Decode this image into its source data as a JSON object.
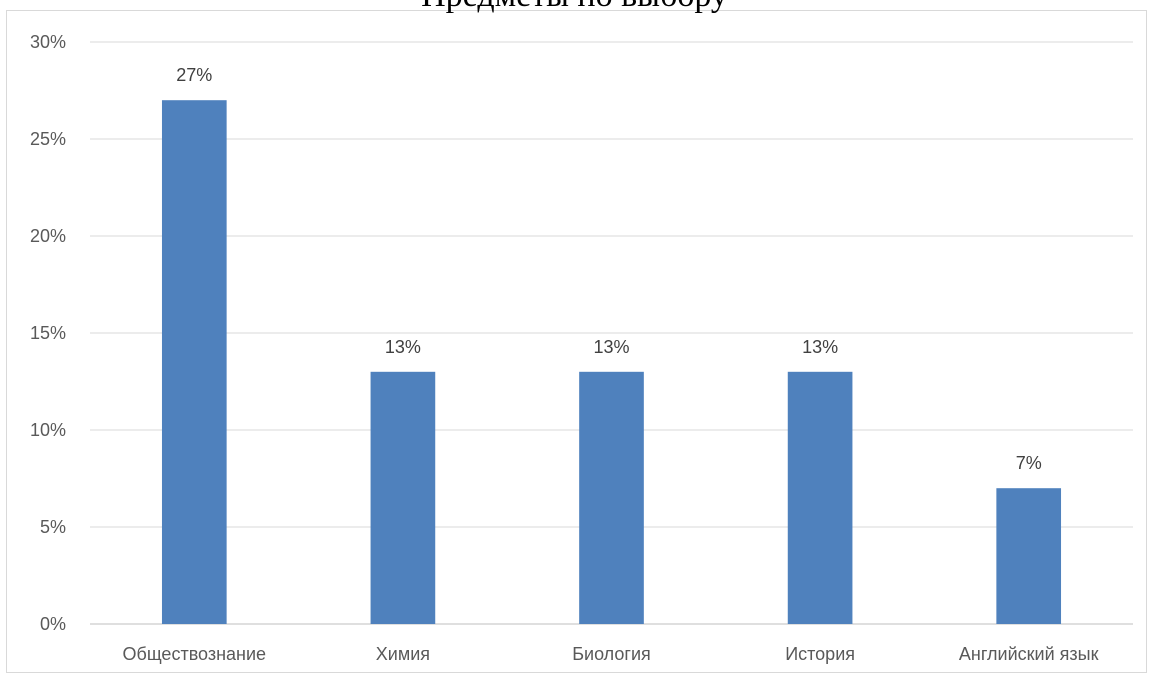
{
  "chart_data": {
    "type": "bar",
    "title": "Предметы по выбору",
    "categories": [
      "Обществознание",
      "Химия",
      "Биология",
      "История",
      "Английский язык"
    ],
    "values": [
      27,
      13,
      13,
      13,
      7
    ],
    "data_labels": [
      "27%",
      "13%",
      "13%",
      "13%",
      "7%"
    ],
    "ylim": [
      0,
      30
    ],
    "y_ticks": [
      "0%",
      "5%",
      "10%",
      "15%",
      "20%",
      "25%",
      "30%"
    ],
    "grid": true,
    "legend": "none",
    "colors": {
      "bar": "#4f81bd",
      "grid": "#d9d9d9",
      "axis": "#bfbfbf"
    }
  }
}
